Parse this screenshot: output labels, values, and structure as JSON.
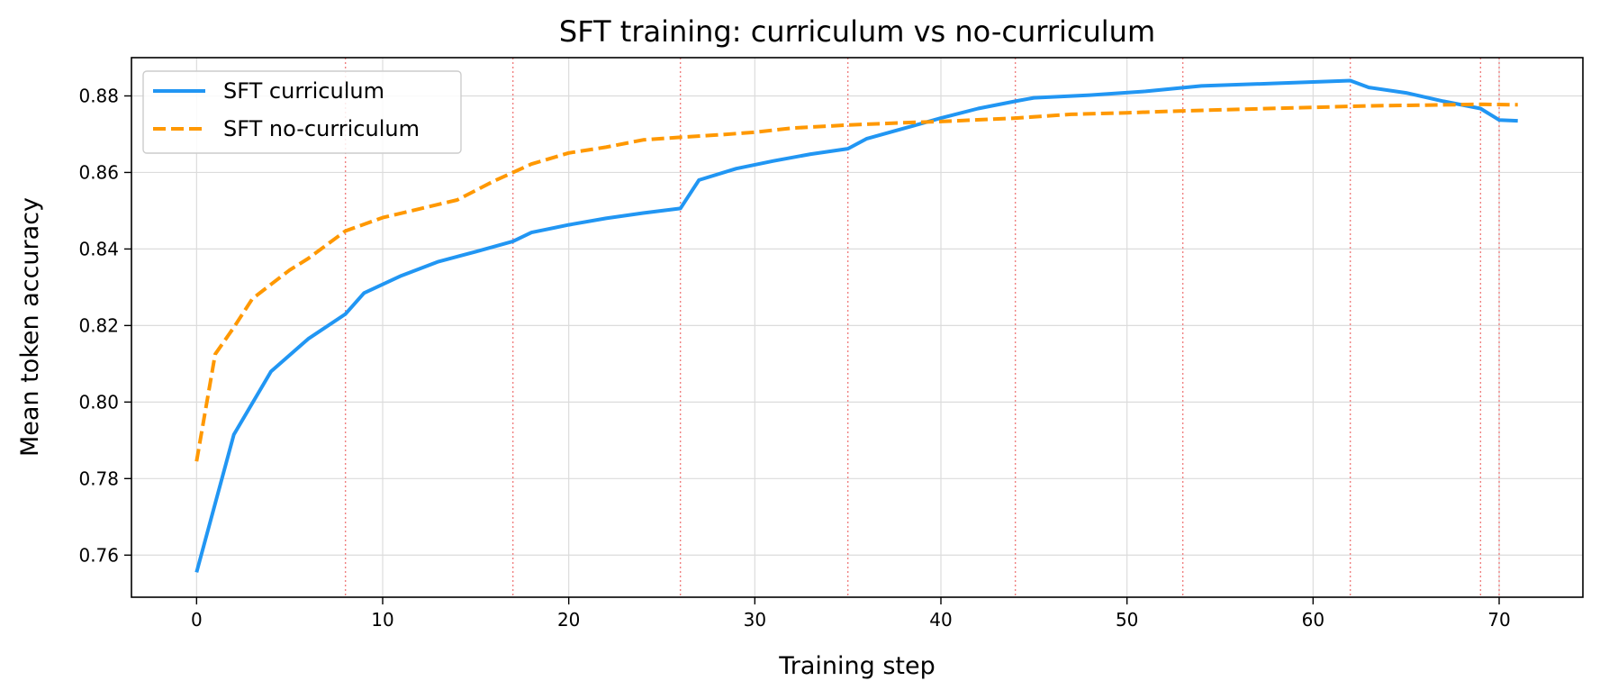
{
  "chart_data": {
    "type": "line",
    "title": "SFT training: curriculum vs no-curriculum",
    "xlabel": "Training step",
    "ylabel": "Mean token accuracy",
    "xlim": [
      -3.5,
      74.5
    ],
    "ylim": [
      0.749,
      0.89
    ],
    "xticks": [
      0,
      10,
      20,
      30,
      40,
      50,
      60,
      70
    ],
    "yticks": [
      0.76,
      0.78,
      0.8,
      0.82,
      0.84,
      0.86,
      0.88
    ],
    "ytick_labels": [
      "0.76",
      "0.78",
      "0.80",
      "0.82",
      "0.84",
      "0.86",
      "0.88"
    ],
    "grid": true,
    "legend_position": "top-left",
    "vlines": [
      8,
      17,
      26,
      35,
      44,
      53,
      62,
      69,
      70
    ],
    "vline_color": "#f08080",
    "series": [
      {
        "name": "SFT curriculum",
        "color": "#2196f3",
        "style": "solid",
        "x": [
          0,
          2,
          4,
          6,
          8,
          9,
          11,
          13,
          15,
          17,
          18,
          20,
          22,
          24,
          26,
          27,
          29,
          31,
          33,
          35,
          36,
          38,
          40,
          42,
          44,
          45,
          48,
          51,
          54,
          58,
          62,
          63,
          65,
          67,
          69,
          70,
          71
        ],
        "y": [
          0.7555,
          0.7915,
          0.808,
          0.8165,
          0.823,
          0.8285,
          0.833,
          0.8367,
          0.8393,
          0.842,
          0.8443,
          0.8463,
          0.848,
          0.8494,
          0.8506,
          0.858,
          0.861,
          0.863,
          0.8648,
          0.8662,
          0.8688,
          0.8715,
          0.8742,
          0.8767,
          0.8786,
          0.8795,
          0.8802,
          0.8812,
          0.8826,
          0.8833,
          0.884,
          0.8822,
          0.8808,
          0.8786,
          0.8767,
          0.8737,
          0.8735
        ]
      },
      {
        "name": "SFT no-curriculum",
        "color": "#ff9800",
        "style": "dashed",
        "x": [
          0,
          1,
          2,
          3,
          5,
          6,
          8,
          10,
          12,
          14,
          16,
          18,
          20,
          22,
          24,
          26,
          28,
          30,
          32,
          35,
          38,
          40,
          44,
          47,
          50,
          53,
          56,
          60,
          63,
          66,
          69,
          71
        ],
        "y": [
          0.7845,
          0.8125,
          0.8195,
          0.827,
          0.8345,
          0.8375,
          0.8447,
          0.8482,
          0.8505,
          0.8528,
          0.8578,
          0.8622,
          0.8651,
          0.8666,
          0.8685,
          0.8692,
          0.8698,
          0.8705,
          0.8716,
          0.8724,
          0.873,
          0.8733,
          0.8742,
          0.8752,
          0.8756,
          0.8761,
          0.8765,
          0.877,
          0.8774,
          0.8776,
          0.8778,
          0.8777
        ]
      }
    ]
  }
}
